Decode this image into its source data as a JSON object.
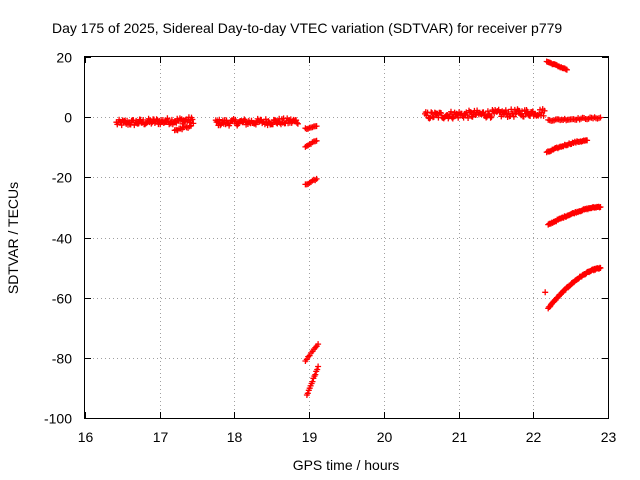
{
  "chart_data": {
    "type": "scatter",
    "title": "Day 175 of 2025, Sidereal Day-to-day VTEC variation (SDTVAR) for receiver p779",
    "xlabel": "GPS time / hours",
    "ylabel": "SDTVAR / TECUs",
    "xlim": [
      16,
      23
    ],
    "ylim": [
      -100,
      20
    ],
    "xticks": [
      "16",
      "17",
      "18",
      "19",
      "20",
      "21",
      "22",
      "23"
    ],
    "yticks": [
      "20",
      "0",
      "-20",
      "-40",
      "-60",
      "-80",
      "-100"
    ],
    "grid": true,
    "marker": "+",
    "color": "#ff0000",
    "series": [
      {
        "name": "seg-a",
        "x_start": 16.42,
        "x_end": 17.45,
        "y_start": -2.0,
        "y_end": -1.0,
        "spread": 2.2,
        "step": 0.012
      },
      {
        "name": "seg-b",
        "x_start": 17.2,
        "x_end": 17.42,
        "y_start": -4.5,
        "y_end": -3.0,
        "spread": 1.0,
        "step": 0.02
      },
      {
        "name": "seg-c",
        "x_start": 17.75,
        "x_end": 18.85,
        "y_start": -1.8,
        "y_end": -1.4,
        "spread": 2.2,
        "step": 0.012
      },
      {
        "name": "seg-d",
        "x_start": 18.95,
        "x_end": 19.1,
        "y_start": -3.8,
        "y_end": -3.0,
        "spread": 0.5,
        "step": 0.02
      },
      {
        "name": "seg-e",
        "x_start": 18.95,
        "x_end": 19.1,
        "y_start": -9.8,
        "y_end": -7.8,
        "spread": 0.5,
        "step": 0.02
      },
      {
        "name": "seg-f",
        "x_start": 18.95,
        "x_end": 19.1,
        "y_start": -22.5,
        "y_end": -20.5,
        "spread": 0.4,
        "step": 0.02
      },
      {
        "name": "seg-g",
        "x_start": 18.95,
        "x_end": 19.12,
        "y_start": -81.0,
        "y_end": -75.5,
        "spread": 0.4,
        "step": 0.018
      },
      {
        "name": "seg-h",
        "x_start": 18.97,
        "x_end": 19.12,
        "y_start": -92.5,
        "y_end": -83.0,
        "spread": 0.4,
        "step": 0.013
      },
      {
        "name": "seg-i",
        "x_start": 20.55,
        "x_end": 22.15,
        "y_start": 0.5,
        "y_end": 1.6,
        "spread": 2.6,
        "step": 0.012
      },
      {
        "name": "seg-j",
        "x_start": 22.2,
        "x_end": 22.9,
        "y_start": -1.0,
        "y_end": -0.2,
        "spread": 0.6,
        "step": 0.02
      },
      {
        "name": "seg-k",
        "x_start": 22.18,
        "x_end": 22.45,
        "y_start": 18.5,
        "y_end": 15.8,
        "spread": 0.4,
        "step": 0.015
      },
      {
        "name": "seg-l",
        "x_start": 22.18,
        "x_end": 22.72,
        "y_start": -11.8,
        "y_end": -7.8,
        "spread": 0.5,
        "step": 0.015,
        "curve": "concave"
      },
      {
        "name": "seg-m",
        "x_start": 22.2,
        "x_end": 22.9,
        "y_start": -35.8,
        "y_end": -29.8,
        "spread": 0.4,
        "step": 0.012,
        "curve": "concave"
      },
      {
        "name": "seg-n",
        "x_start": 22.2,
        "x_end": 22.9,
        "y_start": -63.5,
        "y_end": -50.2,
        "spread": 0.4,
        "step": 0.009,
        "curve": "concave"
      },
      {
        "name": "seg-o",
        "x_start": 22.16,
        "x_end": 22.16,
        "y_start": -58.2,
        "y_end": -58.2,
        "spread": 0,
        "step": 1
      }
    ]
  }
}
